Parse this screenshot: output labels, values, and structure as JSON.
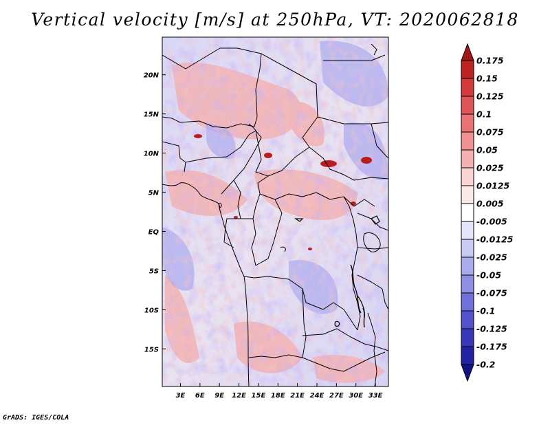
{
  "title": "Vertical velocity [m/s] at 250hPa, VT: 2020062818",
  "credit": "GrADS: IGES/COLA",
  "chart_data": {
    "type": "heatmap",
    "title": "Vertical velocity [m/s] at 250hPa, VT: 2020062818",
    "variable": "Vertical velocity",
    "units": "m/s",
    "level": "250hPa",
    "valid_time": "2020062818",
    "x_axis": {
      "ticks": [
        {
          "label": "3E",
          "value": 3
        },
        {
          "label": "6E",
          "value": 6
        },
        {
          "label": "9E",
          "value": 9
        },
        {
          "label": "12E",
          "value": 12
        },
        {
          "label": "15E",
          "value": 15
        },
        {
          "label": "18E",
          "value": 18
        },
        {
          "label": "21E",
          "value": 21
        },
        {
          "label": "24E",
          "value": 24
        },
        {
          "label": "27E",
          "value": 27
        },
        {
          "label": "30E",
          "value": 30
        },
        {
          "label": "33E",
          "value": 33
        }
      ],
      "range": [
        0.2,
        35
      ]
    },
    "y_axis": {
      "ticks": [
        {
          "label": "20N",
          "value": 20
        },
        {
          "label": "15N",
          "value": 15
        },
        {
          "label": "10N",
          "value": 10
        },
        {
          "label": "5N",
          "value": 5
        },
        {
          "label": "EQ",
          "value": 0
        },
        {
          "label": "5S",
          "value": -5
        },
        {
          "label": "10S",
          "value": -10
        },
        {
          "label": "15S",
          "value": -15
        }
      ],
      "range": [
        -19.8,
        24.8
      ]
    },
    "colorbar": {
      "levels": [
        "0.175",
        "0.15",
        "0.125",
        "0.1",
        "0.075",
        "0.05",
        "0.025",
        "0.0125",
        "0.005",
        "-0.005",
        "-0.0125",
        "-0.025",
        "-0.05",
        "-0.075",
        "-0.1",
        "-0.125",
        "-0.175",
        "-0.2"
      ],
      "colors": [
        "#a51515",
        "#c02222",
        "#d43a3a",
        "#e25555",
        "#ea7272",
        "#f09090",
        "#f6b0b0",
        "#fad2d2",
        "#fde8e8",
        "#ffffff",
        "#e4e4fb",
        "#c9c9f5",
        "#aaaaee",
        "#8e8ee6",
        "#7070dc",
        "#5252cc",
        "#3838bb",
        "#2222a6",
        "#12128a"
      ],
      "extend": "both"
    }
  }
}
